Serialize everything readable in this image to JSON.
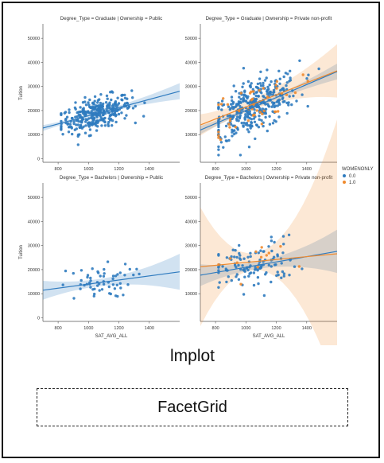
{
  "caption": "lmplot",
  "box_label": "FacetGrid",
  "legend": {
    "title": "WOMENONLY",
    "placement": "right",
    "entries": [
      {
        "label": "0.0",
        "color": "#2f7bbf"
      },
      {
        "label": "1.0",
        "color": "#ef8a2e"
      }
    ]
  },
  "chart_data": [
    {
      "type": "scatter",
      "title": "Degree_Type = Graduate | Ownership = Public",
      "xlabel": "",
      "ylabel": "Tuition",
      "xlim": [
        700,
        1600
      ],
      "ylim": [
        -1500,
        56000
      ],
      "xticks": [
        800,
        1000,
        1200,
        1400
      ],
      "yticks": [
        0,
        10000,
        20000,
        30000,
        40000,
        50000
      ],
      "grid": false,
      "regression": {
        "0.0": [
          820,
          17
        ],
        "1.0": null
      },
      "spread": {
        "0.0": [
          115,
          3200,
          0.9,
          6
        ],
        "1.0": null
      },
      "n_points": {
        "0.0": 320,
        "1.0": 0
      },
      "band_half_width": {
        "0.0": [
          1000,
          500,
          1600
        ],
        "1.0": null
      }
    },
    {
      "type": "scatter",
      "title": "Degree_Type = Graduate | Ownership = Private non-profit",
      "xlabel": "",
      "ylabel": "",
      "xlim": [
        700,
        1600
      ],
      "ylim": [
        -1500,
        56000
      ],
      "xticks": [
        800,
        1000,
        1200,
        1400
      ],
      "yticks": [
        10000,
        20000,
        30000,
        40000,
        50000
      ],
      "grid": false,
      "regression": {
        "0.0": [
          -7000,
          27
        ],
        "1.0": [
          -3500,
          25
        ]
      },
      "spread": {
        "0.0": [
          150,
          5500,
          0.95,
          8
        ],
        "1.0": [
          150,
          5000,
          0.95,
          8
        ]
      },
      "n_points": {
        "0.0": 380,
        "1.0": 45
      },
      "band_half_width": {
        "0.0": [
          1050,
          600,
          1800
        ],
        "1.0": [
          1000,
          2200,
          5000
        ]
      }
    },
    {
      "type": "scatter",
      "title": "Degree_Type = Bachelors | Ownership = Public",
      "xlabel": "SAT_AVG_ALL",
      "ylabel": "Tuition",
      "xlim": [
        700,
        1600
      ],
      "ylim": [
        -1500,
        56000
      ],
      "xticks": [
        800,
        1000,
        1200,
        1400
      ],
      "yticks": [
        0,
        10000,
        20000,
        30000,
        40000,
        50000
      ],
      "grid": false,
      "regression": {
        "0.0": [
          5500,
          8.5
        ],
        "1.0": null
      },
      "spread": {
        "0.0": [
          120,
          3500,
          0.9,
          4
        ],
        "1.0": null
      },
      "n_points": {
        "0.0": 60,
        "1.0": 0
      },
      "band_half_width": {
        "0.0": [
          1050,
          1500,
          4000
        ],
        "1.0": null
      }
    },
    {
      "type": "scatter",
      "title": "Degree_Type = Bachelors | Ownership = Private non-profit",
      "xlabel": "SAT_AVG_ALL",
      "ylabel": "",
      "xlim": [
        700,
        1600
      ],
      "ylim": [
        -1500,
        56000
      ],
      "xticks": [
        800,
        1000,
        1200,
        1400
      ],
      "yticks": [
        10000,
        20000,
        30000,
        40000,
        50000
      ],
      "grid": false,
      "regression": {
        "0.0": [
          10000,
          11
        ],
        "1.0": [
          17000,
          6
        ]
      },
      "spread": {
        "0.0": [
          140,
          5000,
          0.95,
          8
        ],
        "1.0": [
          140,
          4000,
          0.9,
          7
        ]
      },
      "n_points": {
        "0.0": 120,
        "1.0": 12
      },
      "band_half_width": {
        "0.0": [
          1050,
          1500,
          5000
        ],
        "1.0": [
          1050,
          3500,
          35000
        ]
      }
    }
  ]
}
